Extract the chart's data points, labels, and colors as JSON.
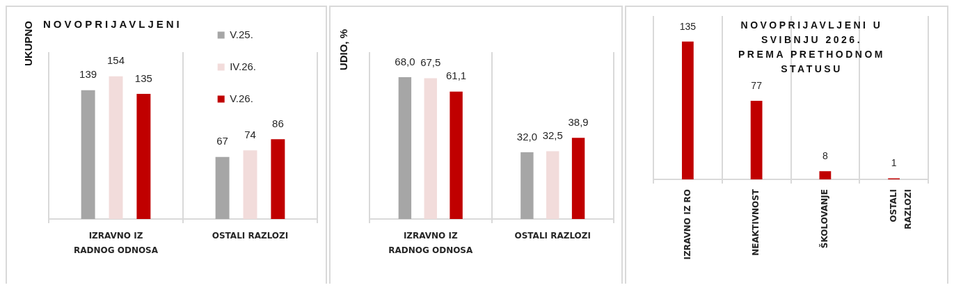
{
  "chart_data": [
    {
      "type": "bar",
      "title": "NOVOPRIJAVLJENI",
      "ylabel": "UKUPNO",
      "categories": [
        "IZRAVNO IZ RADNOG ODNOSA",
        "OSTALI RAZLOZI"
      ],
      "series": [
        {
          "name": "V.25.",
          "color": "#a6a6a6",
          "values": [
            139,
            67
          ]
        },
        {
          "name": "IV.26.",
          "color": "#f2dcdb",
          "values": [
            154,
            74
          ]
        },
        {
          "name": "V.26.",
          "color": "#c00000",
          "values": [
            135,
            86
          ]
        }
      ],
      "data_labels": true,
      "grid": "x",
      "legend": "top right",
      "tick_labels": "x"
    },
    {
      "type": "bar",
      "ylabel": "UDIO, %",
      "categories": [
        "IZRAVNO IZ RADNOG ODNOSA",
        "OSTALI RAZLOZI"
      ],
      "series": [
        {
          "color": "#a6a6a6",
          "values": [
            68.0,
            32.0
          ],
          "value_labels": [
            "68,0",
            "32,0"
          ]
        },
        {
          "color": "#f2dcdb",
          "values": [
            67.5,
            32.5
          ],
          "value_labels": [
            "67,5",
            "32,5"
          ]
        },
        {
          "color": "#c00000",
          "values": [
            61.1,
            38.9
          ],
          "value_labels": [
            "61,1",
            "38,9"
          ]
        }
      ],
      "grid": "x",
      "tick_labels": "x"
    },
    {
      "type": "bar",
      "title": "NOVOPRIJAVLJENI U SVIBNJU 2026. PREMA PRETHODNOM STATUSU",
      "categories": [
        "IZRAVNO IZ RO",
        "NEAKTIVNOST",
        "ŠKOLOVANJE",
        "OSTALI RAZLOZI"
      ],
      "values": [
        135,
        77,
        8,
        1
      ],
      "color": "#c00000",
      "data_labels": true,
      "grid": "x",
      "tick_labels": "x"
    }
  ]
}
